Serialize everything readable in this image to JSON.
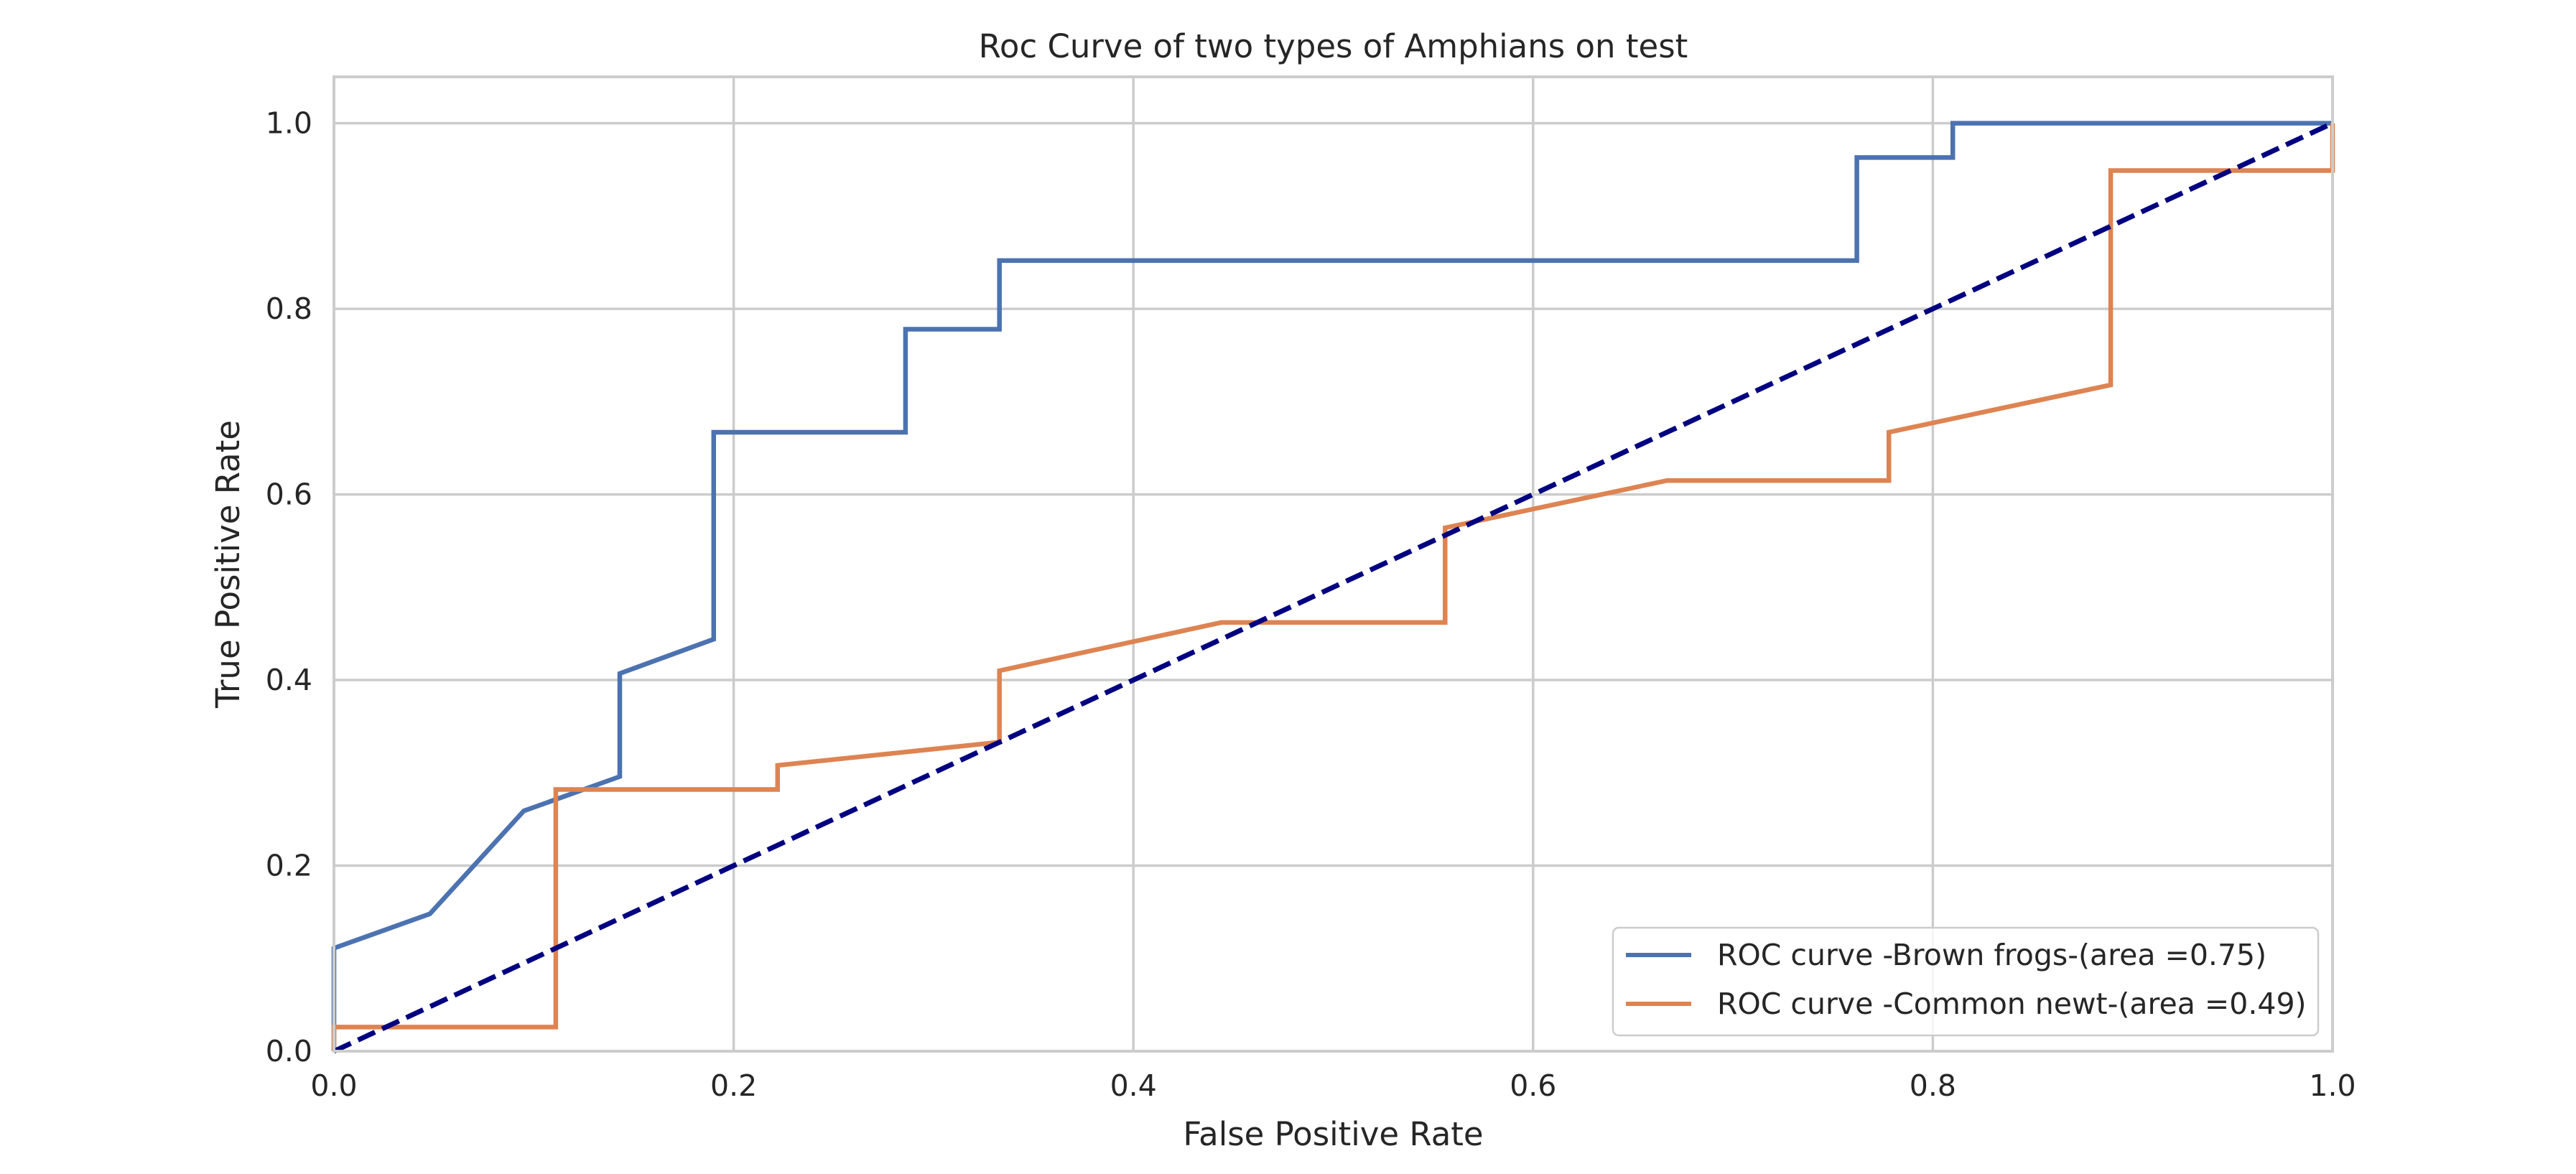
{
  "chart_data": {
    "type": "line",
    "title": "Roc Curve of two types of Amphians on test",
    "xlabel": "False Positive Rate",
    "ylabel": "True Positive Rate",
    "xlim": [
      0.0,
      1.0
    ],
    "ylim": [
      0.0,
      1.05
    ],
    "grid": true,
    "legend_position": "lower-right",
    "xticks": [
      "0.0",
      "0.2",
      "0.4",
      "0.6",
      "0.8",
      "1.0"
    ],
    "yticks": [
      "0.0",
      "0.2",
      "0.4",
      "0.6",
      "0.8",
      "1.0"
    ],
    "series": [
      {
        "name": "ROC curve -Brown frogs-(area =0.75)",
        "color": "#4c72b0",
        "dashed": false,
        "x": [
          0.0,
          0.0,
          0.048,
          0.095,
          0.143,
          0.143,
          0.19,
          0.19,
          0.286,
          0.286,
          0.333,
          0.333,
          0.762,
          0.762,
          0.81,
          0.81,
          1.0
        ],
        "y": [
          0.0,
          0.111,
          0.148,
          0.259,
          0.296,
          0.407,
          0.444,
          0.667,
          0.667,
          0.778,
          0.778,
          0.852,
          0.852,
          0.963,
          0.963,
          1.0,
          1.0
        ]
      },
      {
        "name": "ROC curve -Common newt-(area =0.49)",
        "color": "#dd8452",
        "dashed": false,
        "x": [
          0.0,
          0.0,
          0.111,
          0.111,
          0.222,
          0.222,
          0.333,
          0.333,
          0.444,
          0.556,
          0.556,
          0.667,
          0.778,
          0.778,
          0.889,
          0.889,
          1.0,
          1.0
        ],
        "y": [
          0.0,
          0.026,
          0.026,
          0.282,
          0.282,
          0.308,
          0.333,
          0.41,
          0.462,
          0.462,
          0.564,
          0.615,
          0.615,
          0.667,
          0.718,
          0.949,
          0.949,
          1.0
        ]
      },
      {
        "name": "",
        "color": "#000080",
        "dashed": true,
        "x": [
          0.0,
          1.0
        ],
        "y": [
          0.0,
          1.0
        ]
      }
    ]
  }
}
